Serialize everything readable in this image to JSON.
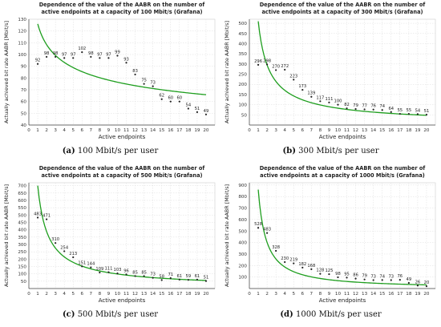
{
  "colors": {
    "curve": "#1e9e1e",
    "point": "#222222",
    "grid": "#dddddd",
    "axis": "#444444"
  },
  "chart_data": [
    {
      "type": "scatter",
      "title_lines": [
        "Dependence of the value of the AABR on the number of",
        "active endpoints at a capacity of 100 Mbit/s (Grafana)"
      ],
      "xlabel": "Active endpoints",
      "ylabel": "Actually achieved bit rate AABR [Mbit/s]",
      "caption_tag": "(a)",
      "caption_text": "100 Mbit/s per user",
      "xlim": [
        0,
        21
      ],
      "xticks": [
        0,
        1,
        2,
        3,
        4,
        5,
        6,
        7,
        8,
        9,
        10,
        11,
        12,
        13,
        14,
        15,
        16,
        17,
        18,
        19,
        20
      ],
      "ylim": [
        40,
        130
      ],
      "yticks": [
        40,
        50,
        60,
        70,
        80,
        90,
        100,
        110,
        120,
        130
      ],
      "grid": true,
      "x": [
        1,
        2,
        3,
        4,
        5,
        6,
        7,
        8,
        9,
        10,
        11,
        12,
        13,
        14,
        15,
        16,
        17,
        18,
        19,
        20
      ],
      "values": [
        92,
        98,
        98,
        97,
        97,
        102,
        98,
        97,
        97,
        99,
        93,
        83,
        75,
        73,
        62,
        60,
        60,
        54,
        51,
        49
      ],
      "point_labels": [
        "92",
        "98",
        "98",
        "97",
        "97",
        "102",
        "98",
        "97",
        "97",
        "99",
        "93",
        "83",
        "75",
        "73",
        "62",
        "60",
        "60",
        "54",
        "51",
        "49"
      ],
      "trend": {
        "kind": "power",
        "a": 126,
        "b": -0.217
      }
    },
    {
      "type": "scatter",
      "title_lines": [
        "Dependence of the value of the AABR on the number of",
        "active endpoints at a capacity of 300 Mbit/s (Grafana)"
      ],
      "xlabel": "Active endpoints",
      "ylabel": "Actually achieved bit rate AABR [Mbit/s]",
      "caption_tag": "(b)",
      "caption_text": "300 Mbit/s per user",
      "xlim": [
        0,
        21
      ],
      "xticks": [
        0,
        1,
        2,
        3,
        4,
        5,
        6,
        7,
        8,
        9,
        10,
        11,
        12,
        13,
        14,
        15,
        16,
        17,
        18,
        19,
        20
      ],
      "ylim": [
        0,
        520
      ],
      "yticks": [
        50,
        100,
        150,
        200,
        250,
        300,
        350,
        400,
        450,
        500
      ],
      "grid": true,
      "x": [
        1,
        2,
        3,
        4,
        5,
        6,
        7,
        8,
        9,
        10,
        11,
        12,
        13,
        14,
        15,
        16,
        17,
        18,
        19,
        20
      ],
      "values": [
        296,
        298,
        270,
        272,
        223,
        173,
        139,
        117,
        111,
        100,
        82,
        79,
        77,
        76,
        74,
        64,
        55,
        55,
        54,
        51
      ],
      "point_labels": [
        "296",
        "298",
        "270",
        "272",
        "223",
        "173",
        "139",
        "117",
        "111",
        "100",
        "82",
        "79",
        "77",
        "76",
        "74",
        "64",
        "55",
        "55",
        "54",
        "51"
      ],
      "trend": {
        "kind": "power",
        "a": 510,
        "b": -0.79
      }
    },
    {
      "type": "scatter",
      "title_lines": [
        "Dependence of the value of the AABR on the number of",
        "active endpoints at a capacity of 500 Mbit/s (Grafana)"
      ],
      "xlabel": "Active endpoints",
      "ylabel": "Actually achieved bit rate AABR [Mbit/s]",
      "caption_tag": "(c)",
      "caption_text": "500 Mbit/s per user",
      "xlim": [
        0,
        21
      ],
      "xticks": [
        0,
        1,
        2,
        3,
        4,
        5,
        6,
        7,
        8,
        9,
        10,
        11,
        12,
        13,
        14,
        15,
        16,
        17,
        18,
        19,
        20
      ],
      "ylim": [
        0,
        720
      ],
      "yticks": [
        50,
        100,
        150,
        200,
        250,
        300,
        350,
        400,
        450,
        500,
        550,
        600,
        650,
        700
      ],
      "grid": true,
      "x": [
        1,
        2,
        3,
        4,
        5,
        6,
        7,
        8,
        9,
        10,
        11,
        12,
        13,
        14,
        15,
        16,
        17,
        18,
        19,
        20
      ],
      "values": [
        483,
        471,
        310,
        254,
        213,
        151,
        144,
        109,
        111,
        103,
        96,
        85,
        85,
        73,
        58,
        71,
        61,
        59,
        61,
        51
      ],
      "point_labels": [
        "483",
        "471",
        "310",
        "254",
        "213",
        "151",
        "144",
        "109",
        "111",
        "103",
        "96",
        "85",
        "85",
        "73",
        "58",
        "71",
        "61",
        "59",
        "61",
        "51"
      ],
      "trend": {
        "kind": "power",
        "a": 700,
        "b": -0.85
      }
    },
    {
      "type": "scatter",
      "title_lines": [
        "Dependence of the value of the AABR on the number of",
        "active endpoints at a capacity of 1000 Mbit/s (Grafana)"
      ],
      "xlabel": "Active endpoints",
      "ylabel": "Actually achieved bit rate AABR [Mbit/s]",
      "caption_tag": "(d)",
      "caption_text": "1000 Mbit/s per user",
      "xlim": [
        0,
        21
      ],
      "xticks": [
        0,
        1,
        2,
        3,
        4,
        5,
        6,
        7,
        8,
        9,
        10,
        11,
        12,
        13,
        14,
        15,
        16,
        17,
        18,
        19,
        20
      ],
      "ylim": [
        0,
        920
      ],
      "yticks": [
        100,
        200,
        300,
        400,
        500,
        600,
        700,
        800,
        900
      ],
      "grid": true,
      "x": [
        1,
        2,
        3,
        4,
        5,
        6,
        7,
        8,
        9,
        10,
        11,
        12,
        13,
        14,
        15,
        16,
        17,
        18,
        19,
        20
      ],
      "values": [
        528,
        483,
        328,
        230,
        219,
        182,
        168,
        128,
        125,
        98,
        95,
        86,
        79,
        73,
        74,
        73,
        76,
        49,
        26,
        20
      ],
      "point_labels": [
        "528",
        "483",
        "328",
        "230",
        "219",
        "182",
        "168",
        "128",
        "125",
        "98",
        "95",
        "86",
        "79",
        "73",
        "74",
        "73",
        "76",
        "49",
        "26",
        "20"
      ],
      "trend": {
        "kind": "power",
        "a": 860,
        "b": -1.1
      }
    }
  ]
}
